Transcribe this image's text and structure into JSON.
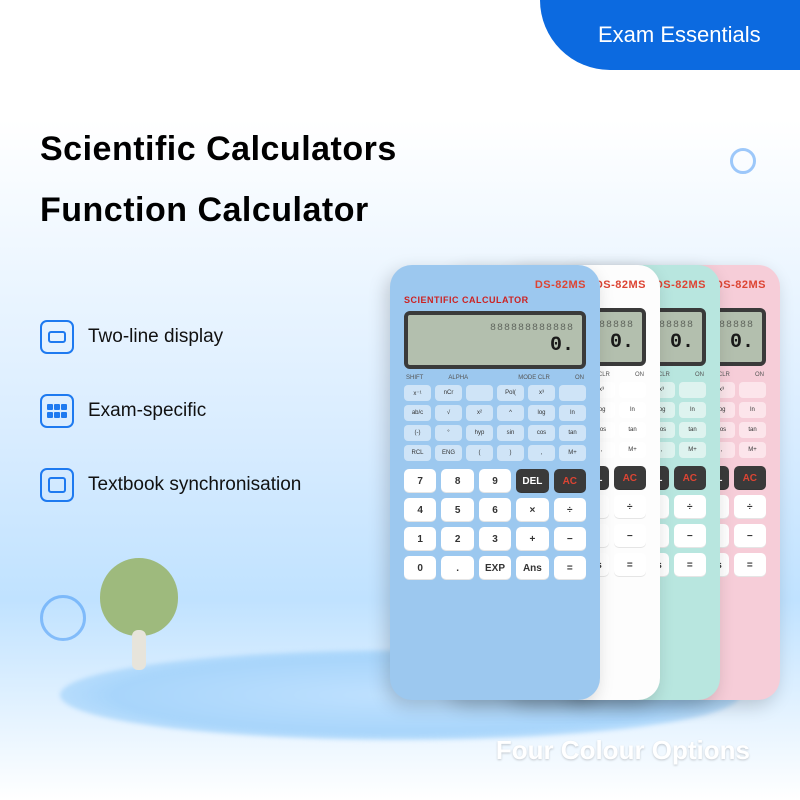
{
  "badge": "Exam Essentials",
  "headline": {
    "line1": "Scientific Calculators",
    "line2": "Function Calculator"
  },
  "features": [
    {
      "label": "Two-line display"
    },
    {
      "label": "Exam-specific"
    },
    {
      "label": "Textbook synchronisation"
    }
  ],
  "footer": "Four Colour Options",
  "colors": {
    "brand_blue": "#0c6ae0",
    "accent_blue": "#1e7af0",
    "bg_gradient_mid": "#d8ecff",
    "calc_blue": "#9cc8ef",
    "calc_white": "#fdfdfd",
    "calc_mint": "#b8e6df",
    "calc_pink": "#f6cdd8",
    "tree_green": "#9eba7d"
  },
  "calculator": {
    "model": "DS-82MS",
    "subtitle": "SCIENTIFIC CALCULATOR",
    "screen_top": "888888888888",
    "screen_value": "0.",
    "toprow_labels": [
      "SHIFT",
      "ALPHA",
      "",
      "MODE CLR",
      "ON"
    ],
    "fn_labels": [
      "x⁻¹",
      "nCr",
      "",
      "Pol(",
      "x³",
      "",
      "ab/c",
      "√",
      "x²",
      "^",
      "log",
      "ln",
      "(-)",
      "°",
      "hyp",
      "sin",
      "cos",
      "tan",
      "RCL",
      "ENG",
      "(",
      ")",
      ",",
      "M+"
    ],
    "big_rows": [
      [
        "7",
        "8",
        "9",
        "DEL",
        "AC"
      ],
      [
        "4",
        "5",
        "6",
        "×",
        "÷"
      ],
      [
        "1",
        "2",
        "3",
        "+",
        "−"
      ],
      [
        "0",
        ".",
        "EXP",
        "Ans",
        "="
      ]
    ],
    "variants": [
      "blue",
      "white",
      "mint",
      "pink"
    ]
  }
}
